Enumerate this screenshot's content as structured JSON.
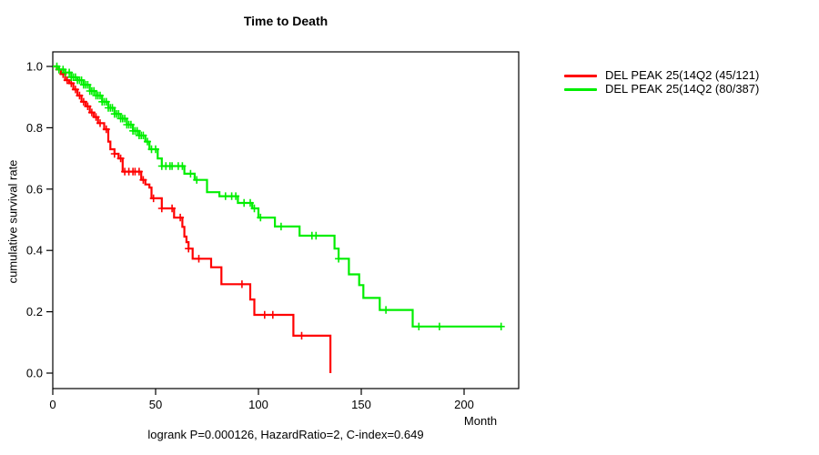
{
  "figure": {
    "title": "Time to Death",
    "y_axis_label": "cumulative survival rate",
    "x_axis_label": "Month",
    "footer_annotation": "logrank P=0.000126, HazardRatio=2, C-index=0.649"
  },
  "legend": {
    "items": [
      {
        "label": "DEL PEAK 25(14Q2 (45/121)",
        "color": "#ff0000"
      },
      {
        "label": "DEL PEAK 25(14Q2 (80/387)",
        "color": "#00ee00"
      }
    ]
  },
  "chart_data": {
    "type": "line",
    "subtype": "kaplan_meier_survival_step",
    "title": "Time to Death",
    "xlabel": "Month",
    "ylabel": "cumulative survival rate",
    "xlim": [
      0,
      226
    ],
    "ylim": [
      0.0,
      1.0
    ],
    "xtick_values": [
      0,
      50,
      100,
      150,
      200
    ],
    "xtick_labels": [
      "0",
      "50",
      "100",
      "150",
      "200"
    ],
    "ytick_values": [
      0.0,
      0.2,
      0.4,
      0.6,
      0.8,
      1.0
    ],
    "ytick_labels": [
      "0.0",
      "0.2",
      "0.4",
      "0.6",
      "0.8",
      "1.0"
    ],
    "grid": false,
    "legend_position": "outside-right-top",
    "annotation": "logrank P=0.000126, HazardRatio=2, C-index=0.649",
    "axis_color": "#000000",
    "series": [
      {
        "name": "DEL PEAK 25(14Q2 (45/121)",
        "color": "#ff0000",
        "step_points": [
          [
            0,
            1.0
          ],
          [
            2,
            0.99
          ],
          [
            4,
            0.975
          ],
          [
            6,
            0.955
          ],
          [
            8,
            0.945
          ],
          [
            10,
            0.925
          ],
          [
            12,
            0.905
          ],
          [
            14,
            0.885
          ],
          [
            16,
            0.87
          ],
          [
            18,
            0.85
          ],
          [
            20,
            0.835
          ],
          [
            22,
            0.815
          ],
          [
            25,
            0.795
          ],
          [
            27,
            0.755
          ],
          [
            28,
            0.73
          ],
          [
            30,
            0.715
          ],
          [
            32,
            0.7
          ],
          [
            34,
            0.657
          ],
          [
            43,
            0.63
          ],
          [
            45,
            0.615
          ],
          [
            47,
            0.605
          ],
          [
            48,
            0.57
          ],
          [
            53,
            0.537
          ],
          [
            59,
            0.507
          ],
          [
            63,
            0.477
          ],
          [
            64,
            0.445
          ],
          [
            65,
            0.427
          ],
          [
            66,
            0.406
          ],
          [
            68,
            0.373
          ],
          [
            77,
            0.345
          ],
          [
            82,
            0.29
          ],
          [
            96,
            0.24
          ],
          [
            98,
            0.19
          ],
          [
            117,
            0.122
          ],
          [
            135,
            0.0
          ]
        ],
        "censor_months": [
          3,
          5,
          7,
          9,
          11,
          13,
          15,
          17,
          19,
          21,
          23,
          26,
          30,
          33,
          35,
          37,
          39,
          40,
          42,
          44,
          49,
          53,
          58,
          62,
          66,
          71,
          92,
          103,
          107,
          121
        ]
      },
      {
        "name": "DEL PEAK 25(14Q2 (80/387)",
        "color": "#00ee00",
        "step_points": [
          [
            0,
            1.0
          ],
          [
            3,
            0.99
          ],
          [
            6,
            0.98
          ],
          [
            9,
            0.965
          ],
          [
            12,
            0.955
          ],
          [
            15,
            0.94
          ],
          [
            18,
            0.92
          ],
          [
            21,
            0.905
          ],
          [
            24,
            0.885
          ],
          [
            27,
            0.865
          ],
          [
            30,
            0.845
          ],
          [
            33,
            0.83
          ],
          [
            36,
            0.81
          ],
          [
            39,
            0.79
          ],
          [
            42,
            0.775
          ],
          [
            45,
            0.755
          ],
          [
            47,
            0.73
          ],
          [
            51,
            0.7
          ],
          [
            53,
            0.675
          ],
          [
            64,
            0.65
          ],
          [
            69,
            0.63
          ],
          [
            75,
            0.59
          ],
          [
            81,
            0.577
          ],
          [
            90,
            0.555
          ],
          [
            97,
            0.537
          ],
          [
            100,
            0.507
          ],
          [
            108,
            0.478
          ],
          [
            120,
            0.448
          ],
          [
            137,
            0.406
          ],
          [
            139,
            0.373
          ],
          [
            144,
            0.322
          ],
          [
            149,
            0.287
          ],
          [
            151,
            0.245
          ],
          [
            159,
            0.206
          ],
          [
            175,
            0.152
          ],
          [
            218,
            0.152
          ]
        ],
        "censor_months": [
          2,
          3,
          5,
          6,
          8,
          9,
          10,
          11,
          12,
          13,
          14,
          15,
          16,
          17,
          18,
          19,
          20,
          21,
          22,
          23,
          24,
          25,
          26,
          27,
          28,
          29,
          30,
          31,
          32,
          33,
          34,
          35,
          36,
          37,
          38,
          39,
          40,
          41,
          42,
          43,
          44,
          46,
          48,
          50,
          53,
          55,
          57,
          58,
          61,
          63,
          67,
          70,
          84,
          87,
          89,
          93,
          96,
          98,
          101,
          111,
          126,
          128,
          139,
          162,
          178,
          188,
          218
        ]
      }
    ]
  }
}
